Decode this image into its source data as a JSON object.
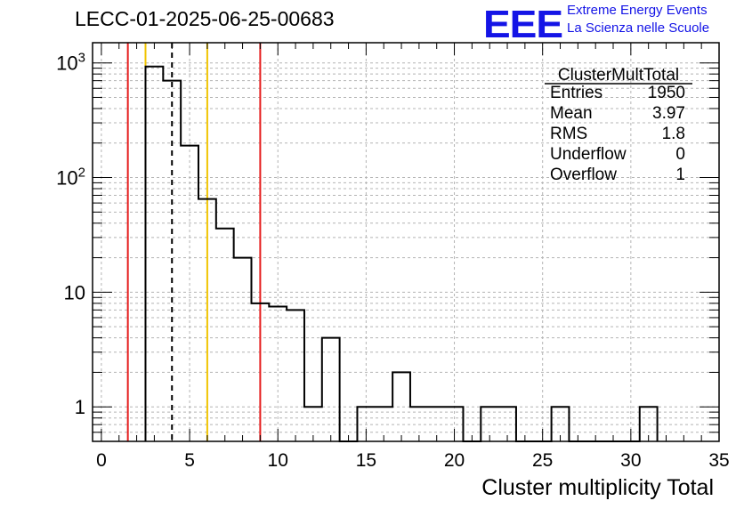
{
  "title": "LECC-01-2025-06-25-00683",
  "logo": {
    "mark": "EEE",
    "line1": "Extreme Energy Events",
    "line2": "La Scienza nelle Scuole"
  },
  "chart_data": {
    "type": "histogram",
    "title": "LECC-01-2025-06-25-00683",
    "xlabel": "Cluster multiplicity Total",
    "ylabel": "",
    "xlim": [
      -0.5,
      35
    ],
    "ylim": [
      0.5,
      1500
    ],
    "yscale": "log",
    "grid": true,
    "x_ticks": [
      0,
      5,
      10,
      15,
      20,
      25,
      30,
      35
    ],
    "y_ticks": [
      {
        "value": 1,
        "label": "1"
      },
      {
        "value": 10,
        "label": "10"
      },
      {
        "value": 100,
        "label": "10²"
      },
      {
        "value": 1000,
        "label": "10³"
      }
    ],
    "bin_width": 1,
    "bins": [
      {
        "low": 2.5,
        "count": 930
      },
      {
        "low": 3.5,
        "count": 700
      },
      {
        "low": 4.5,
        "count": 190
      },
      {
        "low": 5.5,
        "count": 65
      },
      {
        "low": 6.5,
        "count": 36
      },
      {
        "low": 7.5,
        "count": 20
      },
      {
        "low": 8.5,
        "count": 8
      },
      {
        "low": 9.5,
        "count": 7.5
      },
      {
        "low": 10.5,
        "count": 7
      },
      {
        "low": 11.5,
        "count": 1
      },
      {
        "low": 12.5,
        "count": 4
      },
      {
        "low": 13.5,
        "count": 0
      },
      {
        "low": 14.5,
        "count": 1
      },
      {
        "low": 15.5,
        "count": 1
      },
      {
        "low": 16.5,
        "count": 2
      },
      {
        "low": 17.5,
        "count": 1
      },
      {
        "low": 18.5,
        "count": 1
      },
      {
        "low": 19.5,
        "count": 1
      },
      {
        "low": 20.5,
        "count": 0
      },
      {
        "low": 21.5,
        "count": 1
      },
      {
        "low": 22.5,
        "count": 1
      },
      {
        "low": 23.5,
        "count": 0
      },
      {
        "low": 24.5,
        "count": 0
      },
      {
        "low": 25.5,
        "count": 1
      },
      {
        "low": 26.5,
        "count": 0
      },
      {
        "low": 27.5,
        "count": 0
      },
      {
        "low": 28.5,
        "count": 0
      },
      {
        "low": 29.5,
        "count": 0
      },
      {
        "low": 30.5,
        "count": 1
      }
    ],
    "vertical_lines": [
      {
        "x": 1.5,
        "color": "#e61e1e",
        "style": "solid"
      },
      {
        "x": 2.5,
        "color": "#f0c400",
        "style": "solid"
      },
      {
        "x": 4.0,
        "color": "#000000",
        "style": "dashed"
      },
      {
        "x": 6.0,
        "color": "#f0c400",
        "style": "solid"
      },
      {
        "x": 9.0,
        "color": "#e61e1e",
        "style": "solid"
      }
    ],
    "stats_box": {
      "name": "ClusterMultTotal",
      "rows": [
        {
          "label": "Entries",
          "value": "1950"
        },
        {
          "label": "Mean",
          "value": "3.97"
        },
        {
          "label": "RMS",
          "value": "1.8"
        },
        {
          "label": "Underflow",
          "value": "0"
        },
        {
          "label": "Overflow",
          "value": "1"
        }
      ]
    }
  }
}
